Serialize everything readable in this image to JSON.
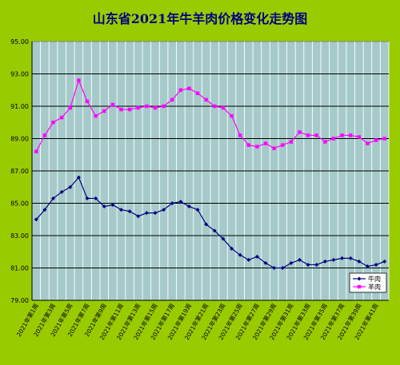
{
  "chart_data": {
    "type": "line",
    "title": "山东省2021年牛羊肉价格变化走势图",
    "ylim": [
      79,
      95
    ],
    "yticks": [
      "79.00",
      "81.00",
      "83.00",
      "85.00",
      "87.00",
      "89.00",
      "91.00",
      "93.00",
      "95.00"
    ],
    "grid": true,
    "legend_position": "bottom-right",
    "x_tick_labels": [
      "2021年第1周",
      "2021年第3周",
      "2021年第5周",
      "2021年第7周",
      "2021年第9周",
      "2021年第11周",
      "2021年第13周",
      "2021年第15周",
      "2021年第17周",
      "2021年第19周",
      "2021年第21周",
      "2021年第23周",
      "2021年第25周",
      "2021年第27周",
      "2021年第29周",
      "2021年第31周",
      "2021年第33周",
      "2021年第35周",
      "2021年第37周",
      "2021年第39周",
      "2021年第41周"
    ],
    "x_tick_every": 2,
    "series": [
      {
        "name": "牛肉",
        "color": "#000080",
        "marker": "diamond",
        "values": [
          84.0,
          84.6,
          85.3,
          85.7,
          86.0,
          86.6,
          85.3,
          85.3,
          84.8,
          84.9,
          84.6,
          84.5,
          84.2,
          84.4,
          84.4,
          84.6,
          85.0,
          85.1,
          84.8,
          84.6,
          83.7,
          83.3,
          82.8,
          82.2,
          81.8,
          81.5,
          81.7,
          81.3,
          81.0,
          81.0,
          81.3,
          81.5,
          81.2,
          81.2,
          81.4,
          81.5,
          81.6,
          81.6,
          81.4,
          81.1,
          81.2,
          81.4
        ]
      },
      {
        "name": "羊肉",
        "color": "#ff00ff",
        "marker": "square",
        "values": [
          88.2,
          89.2,
          90.0,
          90.3,
          90.9,
          92.6,
          91.3,
          90.4,
          90.7,
          91.1,
          90.8,
          90.8,
          90.9,
          91.0,
          90.9,
          91.0,
          91.4,
          92.0,
          92.1,
          91.8,
          91.4,
          91.0,
          90.9,
          90.4,
          89.2,
          88.6,
          88.5,
          88.7,
          88.4,
          88.6,
          88.8,
          89.4,
          89.2,
          89.2,
          88.8,
          89.0,
          89.2,
          89.2,
          89.1,
          88.7,
          88.9,
          89.0
        ]
      }
    ]
  }
}
